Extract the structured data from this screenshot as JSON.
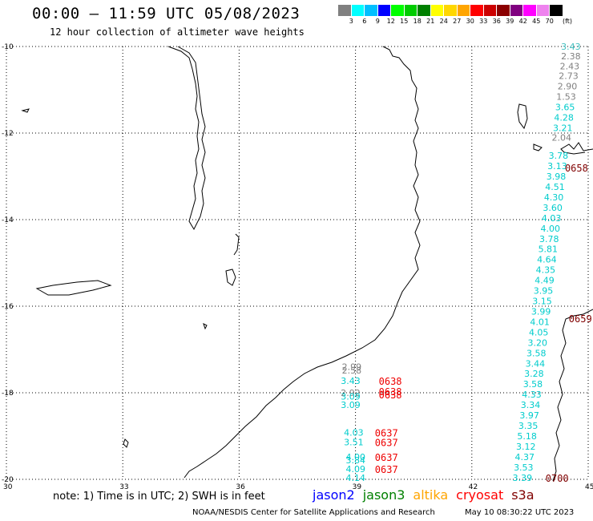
{
  "header": {
    "title": "00:00 – 11:59 UTC 05/08/2023",
    "subtitle": "12 hour collection of altimeter wave heights"
  },
  "legend": {
    "colors": [
      "#808080",
      "#00ffff",
      "#00bfff",
      "#0000ff",
      "#00ff00",
      "#00cc00",
      "#008000",
      "#ffff00",
      "#ffd700",
      "#ffa500",
      "#ff0000",
      "#cc0000",
      "#8b0000",
      "#800080",
      "#ff00ff",
      "#ee82ee",
      "#000000"
    ],
    "labels": [
      "3",
      "6",
      "9",
      "12",
      "15",
      "18",
      "21",
      "24",
      "27",
      "30",
      "33",
      "36",
      "39",
      "42",
      "45",
      "70"
    ],
    "unit": "(ft)"
  },
  "map": {
    "lat_labels": [
      "-10",
      "-12",
      "-14",
      "-16",
      "-18",
      "-20"
    ],
    "lon_labels": [
      "30",
      "33",
      "36",
      "39",
      "42",
      "45"
    ],
    "heights": [
      {
        "v": "3.43",
        "c": "#3fbfbf",
        "lon": 44.3,
        "lat": -10.0
      },
      {
        "v": "2.38",
        "c": "#808080",
        "lon": 44.3,
        "lat": -10.22
      },
      {
        "v": "2.43",
        "c": "#808080",
        "lon": 44.27,
        "lat": -10.45
      },
      {
        "v": "2.73",
        "c": "#808080",
        "lon": 44.24,
        "lat": -10.68
      },
      {
        "v": "2.90",
        "c": "#808080",
        "lon": 44.21,
        "lat": -10.92
      },
      {
        "v": "1.53",
        "c": "#808080",
        "lon": 44.18,
        "lat": -11.16
      },
      {
        "v": "3.65",
        "c": "#00cccc",
        "lon": 44.15,
        "lat": -11.4
      },
      {
        "v": "4.28",
        "c": "#00cccc",
        "lon": 44.12,
        "lat": -11.64
      },
      {
        "v": "3.21",
        "c": "#00cccc",
        "lon": 44.09,
        "lat": -11.88
      },
      {
        "v": "2.04",
        "c": "#808080",
        "lon": 44.06,
        "lat": -12.1
      },
      {
        "v": "3.78",
        "c": "#00cccc",
        "lon": 43.98,
        "lat": -12.52
      },
      {
        "v": "3.13",
        "c": "#00cccc",
        "lon": 43.95,
        "lat": -12.76
      },
      {
        "v": "3.98",
        "c": "#00cccc",
        "lon": 43.92,
        "lat": -13.0
      },
      {
        "v": "4.51",
        "c": "#00cccc",
        "lon": 43.89,
        "lat": -13.24
      },
      {
        "v": "4.30",
        "c": "#00cccc",
        "lon": 43.86,
        "lat": -13.48
      },
      {
        "v": "3.60",
        "c": "#00cccc",
        "lon": 43.83,
        "lat": -13.72
      },
      {
        "v": "4.03",
        "c": "#00cccc",
        "lon": 43.8,
        "lat": -13.96
      },
      {
        "v": "4.00",
        "c": "#00cccc",
        "lon": 43.77,
        "lat": -14.2
      },
      {
        "v": "3.78",
        "c": "#00cccc",
        "lon": 43.74,
        "lat": -14.44
      },
      {
        "v": "5.81",
        "c": "#00cccc",
        "lon": 43.71,
        "lat": -14.68
      },
      {
        "v": "4.64",
        "c": "#00cccc",
        "lon": 43.68,
        "lat": -14.92
      },
      {
        "v": "4.35",
        "c": "#00cccc",
        "lon": 43.65,
        "lat": -15.16
      },
      {
        "v": "4.49",
        "c": "#00cccc",
        "lon": 43.62,
        "lat": -15.4
      },
      {
        "v": "3.95",
        "c": "#00cccc",
        "lon": 43.59,
        "lat": -15.64
      },
      {
        "v": "3.15",
        "c": "#00cccc",
        "lon": 43.56,
        "lat": -15.88
      },
      {
        "v": "3.99",
        "c": "#00cccc",
        "lon": 43.53,
        "lat": -16.12
      },
      {
        "v": "4.01",
        "c": "#00cccc",
        "lon": 43.5,
        "lat": -16.36
      },
      {
        "v": "4.05",
        "c": "#00cccc",
        "lon": 43.47,
        "lat": -16.6
      },
      {
        "v": "3.20",
        "c": "#00cccc",
        "lon": 43.44,
        "lat": -16.84
      },
      {
        "v": "3.58",
        "c": "#00cccc",
        "lon": 43.41,
        "lat": -17.08
      },
      {
        "v": "3.44",
        "c": "#00cccc",
        "lon": 43.38,
        "lat": -17.32
      },
      {
        "v": "3.28",
        "c": "#00cccc",
        "lon": 43.35,
        "lat": -17.56
      },
      {
        "v": "3.58",
        "c": "#00cccc",
        "lon": 43.32,
        "lat": -17.8
      },
      {
        "v": "4.33",
        "c": "#00cccc",
        "lon": 43.29,
        "lat": -18.04
      },
      {
        "v": "3.34",
        "c": "#00cccc",
        "lon": 43.26,
        "lat": -18.28
      },
      {
        "v": "3.97",
        "c": "#00cccc",
        "lon": 43.23,
        "lat": -18.52
      },
      {
        "v": "3.35",
        "c": "#00cccc",
        "lon": 43.2,
        "lat": -18.76
      },
      {
        "v": "5.18",
        "c": "#00cccc",
        "lon": 43.17,
        "lat": -19.0
      },
      {
        "v": "3.12",
        "c": "#00cccc",
        "lon": 43.14,
        "lat": -19.24
      },
      {
        "v": "4.37",
        "c": "#00cccc",
        "lon": 43.11,
        "lat": -19.48
      },
      {
        "v": "3.53",
        "c": "#00cccc",
        "lon": 43.08,
        "lat": -19.72
      },
      {
        "v": "3.39",
        "c": "#00cccc",
        "lon": 43.05,
        "lat": -19.96
      },
      {
        "v": "2.99",
        "c": "#808080",
        "lon": 38.65,
        "lat": -17.4
      },
      {
        "v": "2.58",
        "c": "#808080",
        "lon": 38.65,
        "lat": -17.48
      },
      {
        "v": "3.43",
        "c": "#00cccc",
        "lon": 38.62,
        "lat": -17.72
      },
      {
        "v": "2.92",
        "c": "#808080",
        "lon": 38.62,
        "lat": -18.0
      },
      {
        "v": "3.09",
        "c": "#00cccc",
        "lon": 38.62,
        "lat": -18.08
      },
      {
        "v": "3.09",
        "c": "#00cccc",
        "lon": 38.62,
        "lat": -18.28
      },
      {
        "v": "4.03",
        "c": "#00cccc",
        "lon": 38.7,
        "lat": -18.92
      },
      {
        "v": "3.51",
        "c": "#00cccc",
        "lon": 38.7,
        "lat": -19.14
      },
      {
        "v": "4.00",
        "c": "#00cccc",
        "lon": 38.75,
        "lat": -19.48
      },
      {
        "v": "3.84",
        "c": "#00cccc",
        "lon": 38.75,
        "lat": -19.56
      },
      {
        "v": "4.09",
        "c": "#00cccc",
        "lon": 38.75,
        "lat": -19.76
      },
      {
        "v": "4.14",
        "c": "#00cccc",
        "lon": 38.75,
        "lat": -19.96
      }
    ],
    "passes": [
      {
        "t": "0658",
        "c": "#800000",
        "lon": 44.4,
        "lat": -12.8
      },
      {
        "t": "0659",
        "c": "#800000",
        "lon": 44.5,
        "lat": -16.28
      },
      {
        "t": "0638",
        "c": "#ee0000",
        "lon": 39.6,
        "lat": -17.72
      },
      {
        "t": "0638",
        "c": "#ee0000",
        "lon": 39.6,
        "lat": -17.96
      },
      {
        "t": "0638",
        "c": "#ee0000",
        "lon": 39.6,
        "lat": -18.04
      },
      {
        "t": "0637",
        "c": "#ee0000",
        "lon": 39.5,
        "lat": -18.92
      },
      {
        "t": "0637",
        "c": "#ee0000",
        "lon": 39.5,
        "lat": -19.14
      },
      {
        "t": "0637",
        "c": "#ee0000",
        "lon": 39.5,
        "lat": -19.48
      },
      {
        "t": "0637",
        "c": "#ee0000",
        "lon": 39.5,
        "lat": -19.76
      },
      {
        "t": "0700",
        "c": "#800000",
        "lon": 43.9,
        "lat": -19.96
      }
    ]
  },
  "footer": {
    "note": "note: 1) Time is in UTC; 2) SWH is in feet",
    "missions": [
      {
        "name": "jason2",
        "color": "#0000ff"
      },
      {
        "name": "jason3",
        "color": "#008000"
      },
      {
        "name": "altika",
        "color": "#ffa500"
      },
      {
        "name": "cryosat",
        "color": "#ff0000"
      },
      {
        "name": "s3a",
        "color": "#800000"
      }
    ],
    "credit": "NOAA/NESDIS Center for Satellite Applications and Research",
    "timestamp": "May 10 08:30:22 UTC 2023"
  }
}
